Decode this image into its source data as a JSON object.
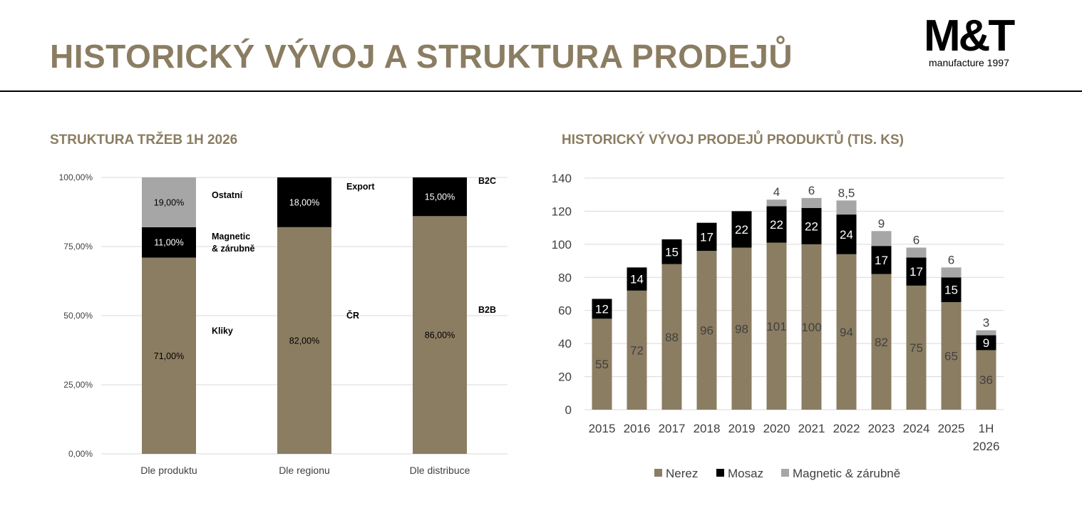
{
  "header": {
    "title": "HISTORICKÝ VÝVOJ A STRUKTURA PRODEJŮ",
    "logo_main": "M&T",
    "logo_sub": "manufacture 1997"
  },
  "colors": {
    "nerez": "#8b7d62",
    "mosaz": "#000000",
    "magnetic": "#a6a6a6",
    "title": "#8b7d62"
  },
  "chart_data": [
    {
      "type": "bar",
      "stacked": true,
      "percent": true,
      "title": "STRUKTURA TRŽEB 1H 2026",
      "categories": [
        "Dle produktu",
        "Dle regionu",
        "Dle distribuce"
      ],
      "ylim": [
        0,
        100
      ],
      "yticks": [
        "0,00%",
        "25,00%",
        "50,00%",
        "75,00%",
        "100,00%"
      ],
      "grid": true,
      "bars": [
        {
          "category": "Dle produktu",
          "segments": [
            {
              "name": "Kliky",
              "value": 71,
              "label": "71,00%"
            },
            {
              "name": "Magnetic & zárubně",
              "value": 11,
              "label": "11,00%"
            },
            {
              "name": "Ostatní",
              "value": 19,
              "label": "19,00%"
            }
          ]
        },
        {
          "category": "Dle regionu",
          "segments": [
            {
              "name": "ČR",
              "value": 82,
              "label": "82,00%"
            },
            {
              "name": "Export",
              "value": 18,
              "label": "18,00%"
            }
          ]
        },
        {
          "category": "Dle distribuce",
          "segments": [
            {
              "name": "B2B",
              "value": 86,
              "label": "86,00%"
            },
            {
              "name": "B2C",
              "value": 15,
              "label": "15,00%"
            }
          ]
        }
      ]
    },
    {
      "type": "bar",
      "stacked": true,
      "title": "HISTORICKÝ VÝVOJ PRODEJŮ PRODUKTŮ (TIS. KS)",
      "categories": [
        "2015",
        "2016",
        "2017",
        "2018",
        "2019",
        "2020",
        "2021",
        "2022",
        "2023",
        "2024",
        "2025",
        "1H 2026"
      ],
      "ylim": [
        0,
        140
      ],
      "yticks": [
        0,
        20,
        40,
        60,
        80,
        100,
        120,
        140
      ],
      "grid": true,
      "legend": "bottom",
      "series": [
        {
          "name": "Nerez",
          "values": [
            55,
            72,
            88,
            96,
            98,
            101,
            100,
            94,
            82,
            75,
            65,
            36
          ],
          "labels": [
            "55",
            "72",
            "88",
            "96",
            "98",
            "101",
            "100",
            "94",
            "82",
            "75",
            "65",
            "36"
          ]
        },
        {
          "name": "Mosaz",
          "values": [
            12,
            14,
            15,
            17,
            22,
            22,
            22,
            24,
            17,
            17,
            15,
            9
          ],
          "labels": [
            "12",
            "14",
            "15",
            "17",
            "22",
            "22",
            "22",
            "24",
            "17",
            "17",
            "15",
            "9"
          ]
        },
        {
          "name": "Magnetic & zárubně",
          "values": [
            0,
            0,
            0,
            0,
            0,
            4,
            6,
            8.5,
            9,
            6,
            6,
            3
          ],
          "labels": [
            "",
            "",
            "",
            "",
            "",
            "4",
            "6",
            "8,5",
            "9",
            "6",
            "6",
            "3"
          ]
        }
      ]
    }
  ]
}
